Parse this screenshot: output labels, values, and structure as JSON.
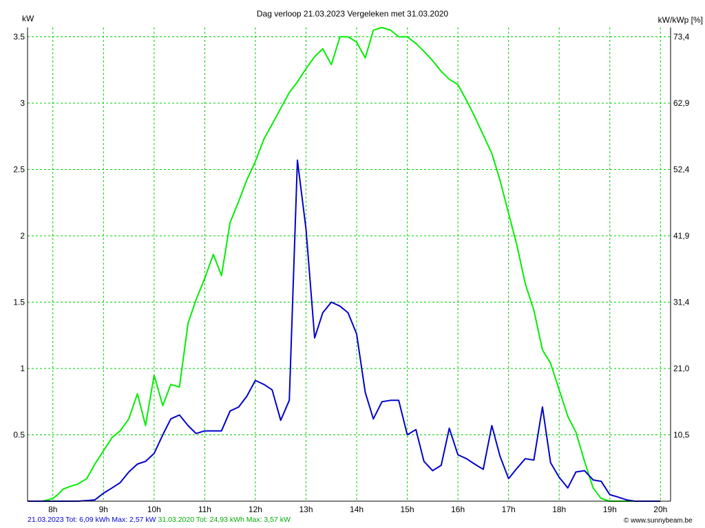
{
  "chart_data": {
    "type": "line",
    "title": "Dag  verloop 21.03.2023   Vergeleken met 31.03.2020",
    "ylabel_left": "kW",
    "ylabel_right": "kW/kWp [%]",
    "ylim": [
      0,
      3.57
    ],
    "xlim": [
      7.5,
      20.2
    ],
    "y_ticks_left": [
      {
        "value": 0.5,
        "label": "0.5"
      },
      {
        "value": 1,
        "label": "1"
      },
      {
        "value": 1.5,
        "label": "1.5"
      },
      {
        "value": 2,
        "label": "2"
      },
      {
        "value": 2.5,
        "label": "2.5"
      },
      {
        "value": 3,
        "label": "3"
      },
      {
        "value": 3.5,
        "label": "3.5"
      }
    ],
    "y_ticks_right": [
      {
        "value": 0.5,
        "label": "10,5"
      },
      {
        "value": 1,
        "label": "21,0"
      },
      {
        "value": 1.5,
        "label": "31,4"
      },
      {
        "value": 2,
        "label": "41,9"
      },
      {
        "value": 2.5,
        "label": "52,4"
      },
      {
        "value": 3,
        "label": "62,9"
      },
      {
        "value": 3.5,
        "label": "73,4"
      }
    ],
    "x_ticks": [
      {
        "value": 8,
        "label": "8h"
      },
      {
        "value": 9,
        "label": "9h"
      },
      {
        "value": 10,
        "label": "10h"
      },
      {
        "value": 11,
        "label": "11h"
      },
      {
        "value": 12,
        "label": "12h"
      },
      {
        "value": 13,
        "label": "13h"
      },
      {
        "value": 14,
        "label": "14h"
      },
      {
        "value": 15,
        "label": "15h"
      },
      {
        "value": 16,
        "label": "16h"
      },
      {
        "value": 17,
        "label": "17h"
      },
      {
        "value": 18,
        "label": "18h"
      },
      {
        "value": 19,
        "label": "19h"
      },
      {
        "value": 20,
        "label": "20h"
      }
    ],
    "grid": true,
    "grid_color": "#00cc00",
    "series": [
      {
        "color": "#00ee00",
        "x": [
          7.5,
          7.8,
          8.0,
          8.1,
          8.2,
          8.33,
          8.5,
          8.67,
          8.83,
          9.0,
          9.17,
          9.33,
          9.5,
          9.67,
          9.83,
          10.0,
          10.17,
          10.33,
          10.5,
          10.67,
          10.83,
          11.0,
          11.17,
          11.33,
          11.5,
          11.67,
          11.83,
          12.0,
          12.17,
          12.33,
          12.5,
          12.67,
          12.83,
          13.0,
          13.17,
          13.33,
          13.5,
          13.67,
          13.83,
          14.0,
          14.17,
          14.33,
          14.5,
          14.67,
          14.83,
          15.0,
          15.17,
          15.33,
          15.5,
          15.67,
          15.83,
          16.0,
          16.17,
          16.33,
          16.5,
          16.67,
          16.83,
          17.0,
          17.17,
          17.33,
          17.5,
          17.67,
          17.83,
          18.0,
          18.17,
          18.33,
          18.5,
          18.67,
          18.83,
          19.0,
          19.17,
          19.33,
          19.5,
          19.67,
          19.83,
          20.0
        ],
        "values": [
          0,
          0,
          0.02,
          0.05,
          0.09,
          0.11,
          0.13,
          0.17,
          0.28,
          0.38,
          0.48,
          0.53,
          0.62,
          0.81,
          0.57,
          0.95,
          0.72,
          0.88,
          0.86,
          1.34,
          1.52,
          1.68,
          1.86,
          1.7,
          2.1,
          2.26,
          2.42,
          2.56,
          2.73,
          2.84,
          2.96,
          3.08,
          3.16,
          3.26,
          3.35,
          3.41,
          3.29,
          3.5,
          3.5,
          3.46,
          3.34,
          3.55,
          3.57,
          3.55,
          3.5,
          3.5,
          3.45,
          3.39,
          3.32,
          3.24,
          3.18,
          3.14,
          3.02,
          2.9,
          2.76,
          2.62,
          2.42,
          2.17,
          1.92,
          1.64,
          1.44,
          1.14,
          1.04,
          0.84,
          0.64,
          0.52,
          0.3,
          0.1,
          0.02,
          0,
          0,
          0,
          0,
          0,
          0,
          0
        ]
      },
      {
        "color": "#0000cc",
        "x": [
          7.5,
          8.5,
          8.83,
          9.0,
          9.17,
          9.33,
          9.5,
          9.67,
          9.83,
          10.0,
          10.17,
          10.33,
          10.5,
          10.67,
          10.83,
          11.0,
          11.17,
          11.33,
          11.5,
          11.67,
          11.83,
          12.0,
          12.17,
          12.33,
          12.5,
          12.67,
          12.83,
          13.0,
          13.17,
          13.33,
          13.5,
          13.67,
          13.83,
          14.0,
          14.17,
          14.33,
          14.5,
          14.67,
          14.83,
          15.0,
          15.17,
          15.33,
          15.5,
          15.67,
          15.83,
          16.0,
          16.17,
          16.33,
          16.5,
          16.67,
          16.83,
          17.0,
          17.17,
          17.33,
          17.5,
          17.67,
          17.83,
          18.0,
          18.17,
          18.33,
          18.5,
          18.67,
          18.83,
          19.0,
          19.17,
          19.33,
          19.5,
          20.0
        ],
        "values": [
          0,
          0,
          0.01,
          0.06,
          0.1,
          0.14,
          0.22,
          0.28,
          0.3,
          0.36,
          0.5,
          0.62,
          0.65,
          0.57,
          0.51,
          0.53,
          0.53,
          0.53,
          0.68,
          0.71,
          0.79,
          0.91,
          0.88,
          0.84,
          0.61,
          0.76,
          2.57,
          2.05,
          1.23,
          1.42,
          1.5,
          1.47,
          1.42,
          1.26,
          0.82,
          0.62,
          0.75,
          0.76,
          0.76,
          0.5,
          0.54,
          0.3,
          0.23,
          0.27,
          0.55,
          0.35,
          0.32,
          0.28,
          0.24,
          0.57,
          0.34,
          0.17,
          0.25,
          0.32,
          0.31,
          0.71,
          0.29,
          0.18,
          0.1,
          0.22,
          0.23,
          0.16,
          0.15,
          0.05,
          0.03,
          0.01,
          0,
          0
        ]
      }
    ]
  },
  "footer": {
    "blue_text": "21.03.2023 Tot: 6,09 kWh Max: 2,57 kW",
    "green_text": "31.03.2020 Tot: 24,93 kWh Max: 3,57 kW"
  },
  "credit": "© www.sunnybeam.be",
  "colors": {
    "background": "#ffffff",
    "grid": "#00cc00",
    "series_2020": "#00ee00",
    "series_2023": "#0000cc"
  }
}
